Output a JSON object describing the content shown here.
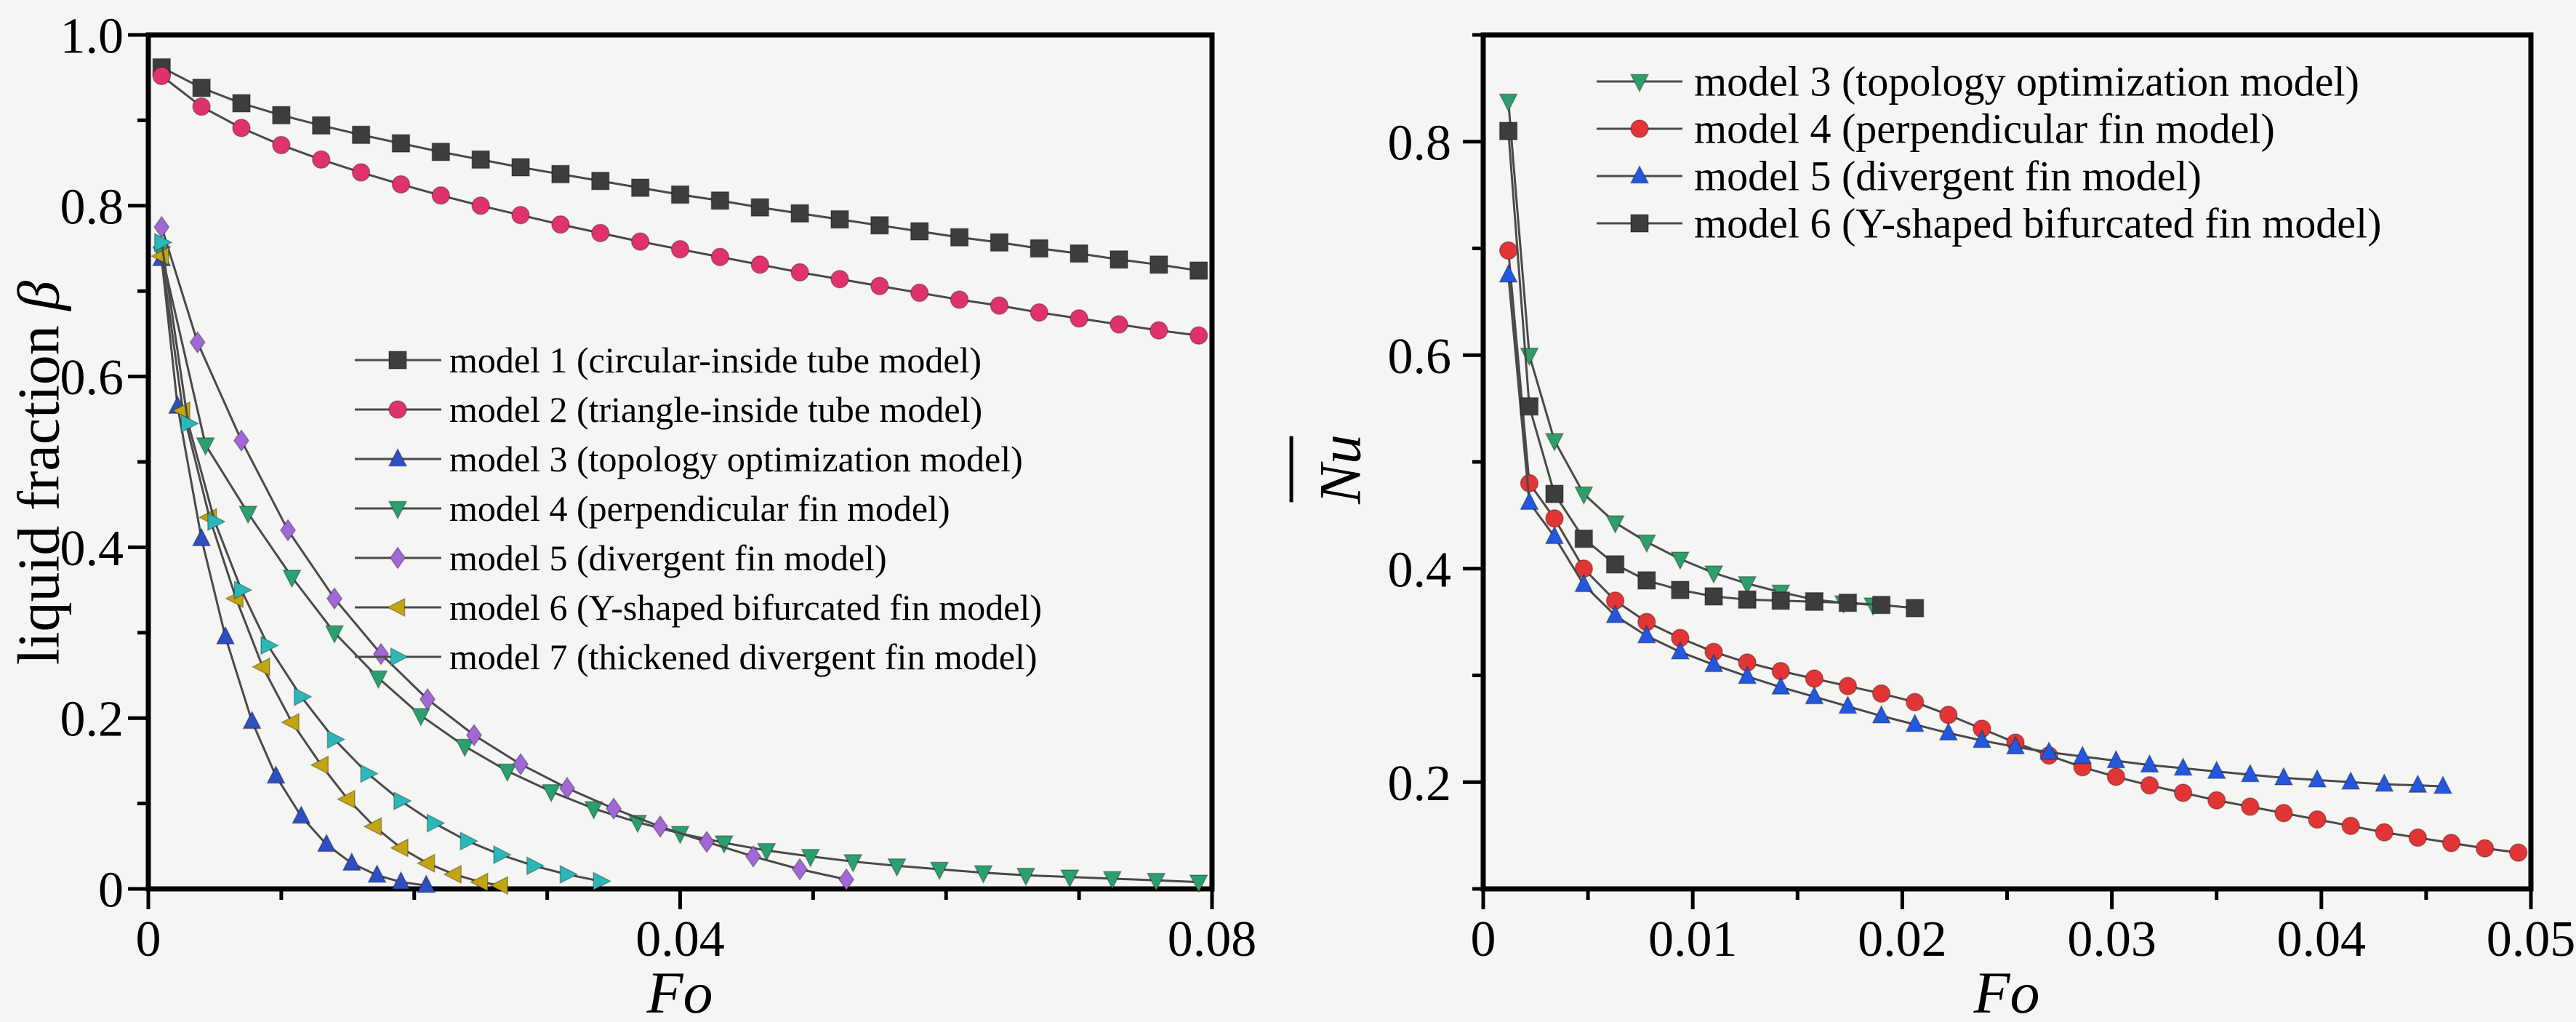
{
  "figure": {
    "background": "#f5f5f4",
    "axis_color": "#000000",
    "curve_line_color": "#4a4a4a",
    "text_color": "#000000"
  },
  "chart_data": [
    {
      "id": "liquid-fraction-vs-fo",
      "type": "line",
      "title": "",
      "xlabel": "Fo",
      "xlabel_italic": true,
      "ylabel_parts": [
        {
          "text": "liquid fraction ",
          "italic": false
        },
        {
          "text": "β",
          "italic": true
        }
      ],
      "xlim": [
        0,
        0.08
      ],
      "ylim": [
        0,
        1.0
      ],
      "xticks": [
        {
          "v": 0,
          "label": "0"
        },
        {
          "v": 0.04,
          "label": "0.04"
        },
        {
          "v": 0.08,
          "label": "0.08"
        }
      ],
      "xminor_step": 0.01,
      "yticks": [
        {
          "v": 0,
          "label": "0"
        },
        {
          "v": 0.2,
          "label": "0.2"
        },
        {
          "v": 0.4,
          "label": "0.4"
        },
        {
          "v": 0.6,
          "label": "0.6"
        },
        {
          "v": 0.8,
          "label": "0.8"
        },
        {
          "v": 1.0,
          "label": "1.0"
        }
      ],
      "yminor_step": 0.1,
      "grid": false,
      "legend_position": "inside-middle-left",
      "series": [
        {
          "name": "model 1 (circular-inside tube model)",
          "marker": "square",
          "color": "#3d3d3d",
          "x": [
            0.001,
            0.004,
            0.007,
            0.01,
            0.013,
            0.016,
            0.019,
            0.022,
            0.025,
            0.028,
            0.031,
            0.034,
            0.037,
            0.04,
            0.043,
            0.046,
            0.049,
            0.052,
            0.055,
            0.058,
            0.061,
            0.064,
            0.067,
            0.07,
            0.073,
            0.076,
            0.079
          ],
          "y": [
            0.962,
            0.938,
            0.92,
            0.906,
            0.894,
            0.883,
            0.873,
            0.863,
            0.854,
            0.845,
            0.837,
            0.829,
            0.821,
            0.813,
            0.806,
            0.798,
            0.791,
            0.784,
            0.777,
            0.77,
            0.763,
            0.757,
            0.75,
            0.744,
            0.737,
            0.731,
            0.724
          ]
        },
        {
          "name": "model 2 (triangle-inside tube model)",
          "marker": "circle",
          "color": "#e0336b",
          "x": [
            0.001,
            0.004,
            0.007,
            0.01,
            0.013,
            0.016,
            0.019,
            0.022,
            0.025,
            0.028,
            0.031,
            0.034,
            0.037,
            0.04,
            0.043,
            0.046,
            0.049,
            0.052,
            0.055,
            0.058,
            0.061,
            0.064,
            0.067,
            0.07,
            0.073,
            0.076,
            0.079
          ],
          "y": [
            0.952,
            0.916,
            0.891,
            0.871,
            0.854,
            0.839,
            0.825,
            0.812,
            0.8,
            0.789,
            0.778,
            0.768,
            0.758,
            0.749,
            0.74,
            0.731,
            0.722,
            0.714,
            0.706,
            0.698,
            0.69,
            0.683,
            0.675,
            0.668,
            0.661,
            0.654,
            0.648
          ]
        },
        {
          "name": "model 3 (topology optimization model)",
          "marker": "triangle-up",
          "color": "#2d4fc0",
          "x": [
            0.001,
            0.0022,
            0.004,
            0.0058,
            0.0078,
            0.0096,
            0.0115,
            0.0134,
            0.0153,
            0.0172,
            0.019,
            0.0209
          ],
          "y": [
            0.738,
            0.565,
            0.41,
            0.295,
            0.196,
            0.132,
            0.085,
            0.052,
            0.03,
            0.016,
            0.008,
            0.004
          ]
        },
        {
          "name": "model 4 (perpendicular fin model)",
          "marker": "triangle-down",
          "color": "#2aa06e",
          "x": [
            0.001,
            0.0043,
            0.0075,
            0.0108,
            0.014,
            0.0173,
            0.0205,
            0.0238,
            0.027,
            0.0303,
            0.0335,
            0.0368,
            0.04,
            0.0433,
            0.0465,
            0.0498,
            0.053,
            0.0563,
            0.0595,
            0.0628,
            0.066,
            0.0693,
            0.0725,
            0.0758,
            0.079
          ],
          "y": [
            0.744,
            0.52,
            0.44,
            0.365,
            0.3,
            0.247,
            0.203,
            0.167,
            0.138,
            0.114,
            0.094,
            0.078,
            0.065,
            0.054,
            0.045,
            0.038,
            0.032,
            0.027,
            0.023,
            0.019,
            0.016,
            0.014,
            0.012,
            0.01,
            0.008
          ]
        },
        {
          "name": "model 5 (divergent fin model)",
          "marker": "diamond",
          "color": "#a168d6",
          "x": [
            0.001,
            0.0037,
            0.007,
            0.0105,
            0.014,
            0.0175,
            0.021,
            0.0245,
            0.028,
            0.0315,
            0.035,
            0.0385,
            0.042,
            0.0455,
            0.049,
            0.0525
          ],
          "y": [
            0.775,
            0.64,
            0.525,
            0.42,
            0.34,
            0.275,
            0.222,
            0.18,
            0.146,
            0.118,
            0.094,
            0.073,
            0.055,
            0.038,
            0.023,
            0.011
          ]
        },
        {
          "name": "model 6 (Y-shaped bifurcated fin model)",
          "marker": "triangle-left",
          "color": "#c2a512",
          "x": [
            0.001,
            0.0026,
            0.0046,
            0.0066,
            0.0086,
            0.0108,
            0.013,
            0.015,
            0.017,
            0.019,
            0.021,
            0.023,
            0.025,
            0.0265
          ],
          "y": [
            0.741,
            0.56,
            0.435,
            0.34,
            0.26,
            0.195,
            0.145,
            0.105,
            0.073,
            0.048,
            0.03,
            0.017,
            0.008,
            0.004
          ]
        },
        {
          "name": "model 7 (thickened divergent fin model)",
          "marker": "triangle-right",
          "color": "#2cb8b8",
          "x": [
            0.001,
            0.003,
            0.005,
            0.007,
            0.009,
            0.0115,
            0.014,
            0.0165,
            0.019,
            0.0215,
            0.024,
            0.0265,
            0.029,
            0.0315,
            0.034
          ],
          "y": [
            0.757,
            0.545,
            0.43,
            0.35,
            0.285,
            0.225,
            0.175,
            0.135,
            0.103,
            0.077,
            0.056,
            0.04,
            0.027,
            0.017,
            0.009
          ]
        }
      ]
    },
    {
      "id": "nu-vs-fo",
      "type": "line",
      "title": "",
      "xlabel": "Fo",
      "xlabel_italic": true,
      "ylabel_parts": [
        {
          "text": "Nu",
          "italic": true,
          "overline": true
        }
      ],
      "xlim": [
        0,
        0.05
      ],
      "ylim": [
        0.1,
        0.9
      ],
      "xticks": [
        {
          "v": 0,
          "label": "0"
        },
        {
          "v": 0.01,
          "label": "0.01"
        },
        {
          "v": 0.02,
          "label": "0.02"
        },
        {
          "v": 0.03,
          "label": "0.03"
        },
        {
          "v": 0.04,
          "label": "0.04"
        },
        {
          "v": 0.05,
          "label": "0.05"
        }
      ],
      "xminor_step": 0.005,
      "yticks": [
        {
          "v": 0.2,
          "label": "0.2"
        },
        {
          "v": 0.4,
          "label": "0.4"
        },
        {
          "v": 0.6,
          "label": "0.6"
        },
        {
          "v": 0.8,
          "label": "0.8"
        }
      ],
      "yminor_step": 0.1,
      "grid": false,
      "legend_position": "inside-top",
      "series": [
        {
          "name": "model 3 (topology optimization model)",
          "marker": "triangle-down",
          "color": "#2f9e68",
          "x": [
            0.0012,
            0.0022,
            0.0034,
            0.0048,
            0.0063,
            0.0078,
            0.0094,
            0.011,
            0.0126,
            0.0142,
            0.0158,
            0.0172,
            0.0186
          ],
          "y": [
            0.838,
            0.6,
            0.52,
            0.47,
            0.443,
            0.425,
            0.409,
            0.396,
            0.386,
            0.378,
            0.371,
            0.368,
            0.366
          ]
        },
        {
          "name": "model 4 (perpendicular fin model)",
          "marker": "circle",
          "color": "#e23535",
          "x": [
            0.0012,
            0.0022,
            0.0034,
            0.0048,
            0.0063,
            0.0078,
            0.0094,
            0.011,
            0.0126,
            0.0142,
            0.0158,
            0.0174,
            0.019,
            0.0206,
            0.0222,
            0.0238,
            0.0254,
            0.027,
            0.0286,
            0.0302,
            0.0318,
            0.0334,
            0.035,
            0.0366,
            0.0382,
            0.0398,
            0.0414,
            0.043,
            0.0446,
            0.0462,
            0.0478,
            0.0494
          ],
          "y": [
            0.698,
            0.48,
            0.447,
            0.4,
            0.37,
            0.35,
            0.335,
            0.322,
            0.312,
            0.304,
            0.297,
            0.29,
            0.283,
            0.275,
            0.263,
            0.25,
            0.237,
            0.225,
            0.214,
            0.205,
            0.197,
            0.19,
            0.183,
            0.177,
            0.171,
            0.165,
            0.159,
            0.153,
            0.148,
            0.143,
            0.138,
            0.134
          ]
        },
        {
          "name": "model 5 (divergent fin model)",
          "marker": "triangle-up",
          "color": "#2257de",
          "x": [
            0.0012,
            0.0022,
            0.0034,
            0.0048,
            0.0063,
            0.0078,
            0.0094,
            0.011,
            0.0126,
            0.0142,
            0.0158,
            0.0174,
            0.019,
            0.0206,
            0.0222,
            0.0238,
            0.0254,
            0.027,
            0.0286,
            0.0302,
            0.0318,
            0.0334,
            0.035,
            0.0366,
            0.0382,
            0.0398,
            0.0414,
            0.043,
            0.0446,
            0.0458
          ],
          "y": [
            0.675,
            0.462,
            0.43,
            0.385,
            0.356,
            0.337,
            0.322,
            0.31,
            0.299,
            0.289,
            0.28,
            0.271,
            0.262,
            0.254,
            0.246,
            0.239,
            0.233,
            0.228,
            0.224,
            0.22,
            0.216,
            0.213,
            0.21,
            0.207,
            0.204,
            0.202,
            0.2,
            0.198,
            0.197,
            0.196
          ]
        },
        {
          "name": "model 6 (Y-shaped bifurcated fin model)",
          "marker": "square",
          "color": "#3d3d3d",
          "x": [
            0.0012,
            0.0022,
            0.0034,
            0.0048,
            0.0063,
            0.0078,
            0.0094,
            0.011,
            0.0126,
            0.0142,
            0.0158,
            0.0174,
            0.019,
            0.0206
          ],
          "y": [
            0.81,
            0.552,
            0.47,
            0.428,
            0.404,
            0.389,
            0.38,
            0.374,
            0.371,
            0.37,
            0.369,
            0.368,
            0.366,
            0.363
          ]
        }
      ]
    }
  ]
}
